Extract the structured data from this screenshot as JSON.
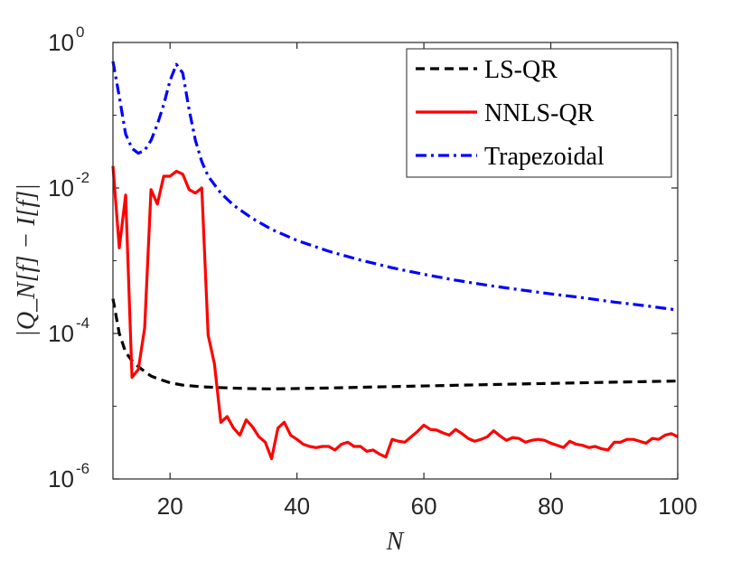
{
  "chart_data": {
    "type": "line",
    "yscale": "log",
    "xlabel": "N",
    "ylabel": "|Q_N[f] − I[f]|",
    "xlim": [
      11,
      100
    ],
    "ylim": [
      1e-06,
      1
    ],
    "xticks": [
      20,
      40,
      60,
      80,
      100
    ],
    "yticks": [
      {
        "value": 1,
        "base": "10",
        "exp": "0"
      },
      {
        "value": 0.01,
        "base": "10",
        "exp": "-2"
      },
      {
        "value": 0.0001,
        "base": "10",
        "exp": "-4"
      },
      {
        "value": 1e-06,
        "base": "10",
        "exp": "-6"
      }
    ],
    "legend_position": "top-right",
    "series": [
      {
        "name": "LS-QR",
        "color": "#000000",
        "style": "dashed",
        "points": [
          [
            11,
            0.0003
          ],
          [
            12,
            0.0001
          ],
          [
            13,
            5.5e-05
          ],
          [
            14,
            4.2e-05
          ],
          [
            15,
            3.5e-05
          ],
          [
            16,
            3e-05
          ],
          [
            17,
            2.6e-05
          ],
          [
            18,
            2.4e-05
          ],
          [
            20,
            2.1e-05
          ],
          [
            22,
            1.95e-05
          ],
          [
            25,
            1.85e-05
          ],
          [
            28,
            1.8e-05
          ],
          [
            32,
            1.75e-05
          ],
          [
            36,
            1.73e-05
          ],
          [
            40,
            1.75e-05
          ],
          [
            45,
            1.78e-05
          ],
          [
            50,
            1.82e-05
          ],
          [
            55,
            1.86e-05
          ],
          [
            60,
            1.9e-05
          ],
          [
            65,
            1.94e-05
          ],
          [
            70,
            1.98e-05
          ],
          [
            75,
            2.02e-05
          ],
          [
            80,
            2.06e-05
          ],
          [
            85,
            2.1e-05
          ],
          [
            90,
            2.14e-05
          ],
          [
            95,
            2.18e-05
          ],
          [
            100,
            2.22e-05
          ]
        ]
      },
      {
        "name": "NNLS-QR",
        "color": "#ff0000",
        "style": "solid",
        "points": [
          [
            11,
            0.02
          ],
          [
            12,
            0.0015
          ],
          [
            13,
            0.008
          ],
          [
            14,
            2.5e-05
          ],
          [
            15,
            3.2e-05
          ],
          [
            16,
            0.00012
          ],
          [
            17,
            0.0095
          ],
          [
            18,
            0.006
          ],
          [
            19,
            0.0145
          ],
          [
            20,
            0.0145
          ],
          [
            21,
            0.017
          ],
          [
            22,
            0.0155
          ],
          [
            23,
            0.0095
          ],
          [
            24,
            0.0085
          ],
          [
            25,
            0.01
          ],
          [
            26,
            9.5e-05
          ],
          [
            27,
            3.8e-05
          ],
          [
            28,
            6e-06
          ],
          [
            29,
            7.2e-06
          ],
          [
            30,
            5e-06
          ],
          [
            31,
            4e-06
          ],
          [
            32,
            6.5e-06
          ],
          [
            33,
            5.2e-06
          ],
          [
            34,
            3.8e-06
          ],
          [
            35,
            3.2e-06
          ],
          [
            36,
            1.9e-06
          ],
          [
            37,
            5e-06
          ],
          [
            38,
            6e-06
          ],
          [
            39,
            4e-06
          ],
          [
            40,
            3.5e-06
          ],
          [
            41,
            3e-06
          ],
          [
            42,
            2.8e-06
          ],
          [
            43,
            2.7e-06
          ],
          [
            44,
            2.8e-06
          ],
          [
            45,
            2.8e-06
          ],
          [
            46,
            2.5e-06
          ],
          [
            47,
            3e-06
          ],
          [
            48,
            3.2e-06
          ],
          [
            49,
            2.8e-06
          ],
          [
            50,
            2.8e-06
          ],
          [
            51,
            2.4e-06
          ],
          [
            52,
            2.5e-06
          ],
          [
            53,
            2.2e-06
          ],
          [
            54,
            2e-06
          ],
          [
            55,
            3.5e-06
          ],
          [
            56,
            3.3e-06
          ],
          [
            57,
            3.2e-06
          ],
          [
            58,
            3.8e-06
          ],
          [
            59,
            4.5e-06
          ],
          [
            60,
            5.5e-06
          ],
          [
            61,
            4.8e-06
          ],
          [
            62,
            4.7e-06
          ],
          [
            63,
            4.3e-06
          ],
          [
            64,
            4e-06
          ],
          [
            65,
            4.8e-06
          ],
          [
            66,
            4.2e-06
          ],
          [
            67,
            3.6e-06
          ],
          [
            68,
            3.3e-06
          ],
          [
            69,
            3.5e-06
          ],
          [
            70,
            3.8e-06
          ],
          [
            71,
            4.6e-06
          ],
          [
            72,
            3.9e-06
          ],
          [
            73,
            3.4e-06
          ],
          [
            74,
            3.7e-06
          ],
          [
            75,
            3.6e-06
          ],
          [
            76,
            3.2e-06
          ],
          [
            77,
            3.4e-06
          ],
          [
            78,
            3.5e-06
          ],
          [
            79,
            3.4e-06
          ],
          [
            80,
            3.1e-06
          ],
          [
            81,
            2.9e-06
          ],
          [
            82,
            2.7e-06
          ],
          [
            83,
            3.3e-06
          ],
          [
            84,
            3e-06
          ],
          [
            85,
            2.9e-06
          ],
          [
            86,
            2.7e-06
          ],
          [
            87,
            2.8e-06
          ],
          [
            88,
            2.6e-06
          ],
          [
            89,
            2.5e-06
          ],
          [
            90,
            3.2e-06
          ],
          [
            91,
            3.2e-06
          ],
          [
            92,
            3.5e-06
          ],
          [
            93,
            3.5e-06
          ],
          [
            94,
            3.3e-06
          ],
          [
            95,
            3.1e-06
          ],
          [
            96,
            3.6e-06
          ],
          [
            97,
            3.5e-06
          ],
          [
            98,
            4e-06
          ],
          [
            99,
            4.2e-06
          ],
          [
            100,
            3.8e-06
          ]
        ]
      },
      {
        "name": "Trapezoidal",
        "color": "#0000ff",
        "style": "dashdot",
        "points": [
          [
            11,
            0.55
          ],
          [
            12,
            0.18
          ],
          [
            13,
            0.055
          ],
          [
            14,
            0.035
          ],
          [
            15,
            0.03
          ],
          [
            16,
            0.033
          ],
          [
            17,
            0.045
          ],
          [
            18,
            0.075
          ],
          [
            19,
            0.14
          ],
          [
            20,
            0.3
          ],
          [
            21,
            0.5
          ],
          [
            22,
            0.38
          ],
          [
            23,
            0.12
          ],
          [
            24,
            0.045
          ],
          [
            25,
            0.023
          ],
          [
            26,
            0.0145
          ],
          [
            28,
            0.0085
          ],
          [
            30,
            0.0058
          ],
          [
            33,
            0.0038
          ],
          [
            36,
            0.0027
          ],
          [
            40,
            0.0019
          ],
          [
            45,
            0.00135
          ],
          [
            50,
            0.00102
          ],
          [
            55,
            0.0008
          ],
          [
            60,
            0.00065
          ],
          [
            65,
            0.00054
          ],
          [
            70,
            0.00046
          ],
          [
            75,
            0.0004
          ],
          [
            80,
            0.00035
          ],
          [
            85,
            0.00031
          ],
          [
            90,
            0.00027
          ],
          [
            95,
            0.00024
          ],
          [
            100,
            0.00021
          ]
        ]
      }
    ]
  }
}
